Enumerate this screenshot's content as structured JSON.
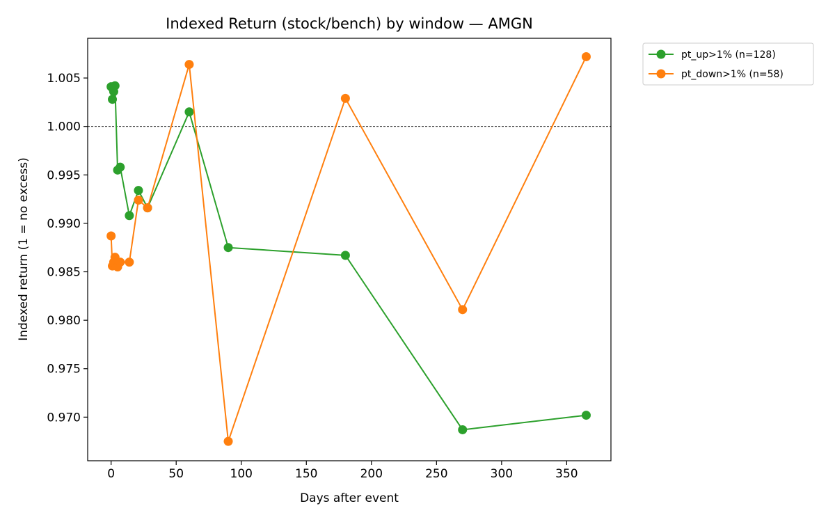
{
  "chart_data": {
    "type": "line",
    "title": "Indexed Return (stock/bench) by window — AMGN",
    "xlabel": "Days after event",
    "ylabel": "Indexed return (1 = no excess)",
    "xlim": [
      -18,
      384
    ],
    "ylim": [
      0.9655,
      1.0091
    ],
    "xticks": [
      0,
      50,
      100,
      150,
      200,
      250,
      300,
      350
    ],
    "yticks": [
      0.97,
      0.975,
      0.98,
      0.985,
      0.99,
      0.995,
      1.0,
      1.005
    ],
    "ytick_labels": [
      "0.970",
      "0.975",
      "0.980",
      "0.985",
      "0.990",
      "0.995",
      "1.000",
      "1.005"
    ],
    "reference_line": {
      "y": 1.0,
      "style": "dashed",
      "color": "#000000"
    },
    "grid": false,
    "legend_position": "outside-top-right",
    "series": [
      {
        "name": "pt_up>1% (n=128)",
        "color": "#2ca02c",
        "x": [
          0,
          1,
          2,
          3,
          5,
          7,
          14,
          21,
          28,
          60,
          90,
          180,
          270,
          365
        ],
        "y": [
          1.0041,
          1.0028,
          1.0036,
          1.0042,
          0.9955,
          0.9958,
          0.9908,
          0.9934,
          0.9916,
          1.0015,
          0.9875,
          0.9867,
          0.9687,
          0.9702
        ]
      },
      {
        "name": "pt_down>1% (n=58)",
        "color": "#ff7f0e",
        "x": [
          0,
          1,
          2,
          3,
          5,
          7,
          14,
          21,
          28,
          60,
          90,
          180,
          270,
          365
        ],
        "y": [
          0.9887,
          0.9856,
          0.986,
          0.9865,
          0.9855,
          0.986,
          0.986,
          0.9924,
          0.9916,
          1.0064,
          0.9675,
          1.0029,
          0.9811,
          1.0072
        ]
      }
    ]
  }
}
